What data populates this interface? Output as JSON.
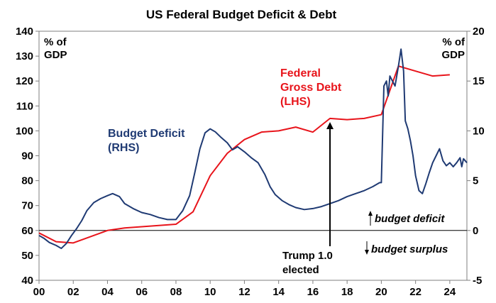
{
  "chart_data": {
    "type": "line",
    "title": "US Federal Budget Deficit & Debt",
    "left_axis": {
      "unit_line1": "% of",
      "unit_line2": "GDP",
      "ylim": [
        40,
        140
      ],
      "ticks": [
        "40",
        "50",
        "60",
        "70",
        "80",
        "90",
        "100",
        "110",
        "120",
        "130",
        "140"
      ]
    },
    "right_axis": {
      "unit_line1": "% of",
      "unit_line2": "GDP",
      "ylim": [
        -5,
        20
      ],
      "ticks": [
        "-5",
        "0",
        "5",
        "10",
        "15",
        "20"
      ]
    },
    "x_axis": {
      "xlim": [
        2000,
        2025
      ],
      "ticks": [
        "00",
        "02",
        "04",
        "06",
        "08",
        "10",
        "12",
        "14",
        "16",
        "18",
        "20",
        "22",
        "24"
      ]
    },
    "colors": {
      "deficit": "#1f3a73",
      "debt": "#e8141b",
      "zero_line": "#000000"
    },
    "series": [
      {
        "name": "Federal Gross Debt (LHS)",
        "axis": "left",
        "x": [
          2000,
          2001,
          2002,
          2003,
          2004,
          2005,
          2006,
          2007,
          2008,
          2009,
          2010,
          2011,
          2012,
          2013,
          2014,
          2015,
          2016,
          2017,
          2018,
          2019,
          2020,
          2021,
          2022,
          2023,
          2024
        ],
        "values": [
          59,
          55.5,
          55,
          57.5,
          60,
          61,
          61.5,
          62,
          62.5,
          67.5,
          82,
          91,
          96.5,
          99.5,
          100,
          101.5,
          99.5,
          105,
          104.5,
          105,
          106.5,
          126,
          124,
          122,
          122.5
        ]
      },
      {
        "name": "Budget Deficit (RHS)",
        "axis": "right",
        "x": [
          2000.0,
          2000.3,
          2000.6,
          2001.0,
          2001.3,
          2001.6,
          2001.9,
          2002.2,
          2002.5,
          2002.8,
          2003.2,
          2003.6,
          2004.0,
          2004.3,
          2004.7,
          2005.0,
          2005.5,
          2006.0,
          2006.5,
          2007.0,
          2007.5,
          2008.0,
          2008.4,
          2008.8,
          2009.1,
          2009.4,
          2009.7,
          2010.0,
          2010.3,
          2010.6,
          2011.0,
          2011.3,
          2011.6,
          2012.0,
          2012.4,
          2012.8,
          2013.2,
          2013.5,
          2013.8,
          2014.2,
          2014.6,
          2015.0,
          2015.5,
          2016.0,
          2016.5,
          2017.0,
          2017.5,
          2018.0,
          2018.5,
          2019.0,
          2019.5,
          2019.9,
          2020.0,
          2020.15,
          2020.3,
          2020.4,
          2020.5,
          2020.65,
          2020.8,
          2021.0,
          2021.15,
          2021.3,
          2021.4,
          2021.55,
          2021.7,
          2021.85,
          2022.0,
          2022.2,
          2022.4,
          2022.6,
          2022.8,
          2023.0,
          2023.2,
          2023.4,
          2023.6,
          2023.8,
          2024.0,
          2024.2,
          2024.4,
          2024.6,
          2024.7,
          2024.8,
          2025.0
        ],
        "values": [
          -0.5,
          -0.8,
          -1.2,
          -1.5,
          -1.8,
          -1.3,
          -0.5,
          0.2,
          1.0,
          2.0,
          2.8,
          3.2,
          3.5,
          3.7,
          3.4,
          2.7,
          2.2,
          1.8,
          1.6,
          1.3,
          1.1,
          1.1,
          2.0,
          3.5,
          5.8,
          8.2,
          9.8,
          10.2,
          9.9,
          9.4,
          8.8,
          8.1,
          8.4,
          7.9,
          7.3,
          6.8,
          5.6,
          4.4,
          3.6,
          3.0,
          2.6,
          2.3,
          2.1,
          2.2,
          2.4,
          2.7,
          3.0,
          3.4,
          3.7,
          4.0,
          4.4,
          4.8,
          4.8,
          14.5,
          15.0,
          13.5,
          15.5,
          15.0,
          14.5,
          16.5,
          18.2,
          16.0,
          11.0,
          10.2,
          9.0,
          7.5,
          5.5,
          4.0,
          3.7,
          4.7,
          5.8,
          6.8,
          7.5,
          8.2,
          7.0,
          6.5,
          6.8,
          6.4,
          6.8,
          7.3,
          6.4,
          7.2,
          6.8
        ]
      }
    ],
    "annotations": {
      "deficit_label_line1": "Budget Deficit",
      "deficit_label_line2": "(RHS)",
      "debt_label_line1": "Federal",
      "debt_label_line2": "Gross Debt",
      "debt_label_line3": "(LHS)",
      "trump_label_line1": "Trump 1.0",
      "trump_label_line2": "elected",
      "trump_year": 2017,
      "deficit_note": "budget deficit",
      "surplus_note": "budget surplus"
    },
    "grid": false
  }
}
